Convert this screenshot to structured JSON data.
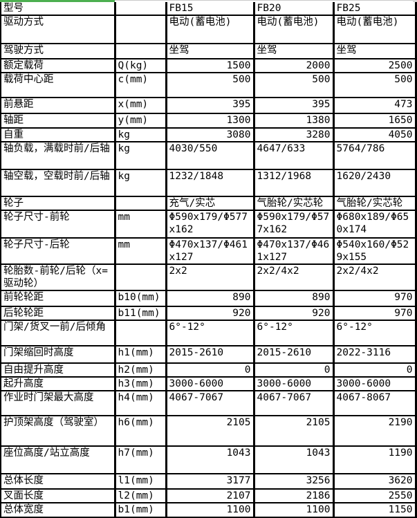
{
  "accent": {
    "selection_green": "#4CAF50",
    "gridline_gray": "#c9c9c9",
    "corner_gray": "#d4d4d4",
    "table_border": "#000000"
  },
  "table": {
    "model_header_label": "型号",
    "models": [
      "FB15",
      "FB20",
      "FB25"
    ],
    "rows": [
      {
        "label": "型号",
        "unit": "",
        "fb15": "FB15",
        "fb20": "FB20",
        "fb25": "FB25"
      },
      {
        "label": "驱动方式",
        "unit": "",
        "fb15": "电动(蓄电池)",
        "fb20": "电动(蓄电池)",
        "fb25": "电动(蓄电池)"
      },
      {
        "label": "驾驶方式",
        "unit": "",
        "fb15": "坐驾",
        "fb20": "坐驾",
        "fb25": "坐驾"
      },
      {
        "label": "额定载荷",
        "unit": "Q(kg)",
        "fb15": "1500",
        "fb20": "2000",
        "fb25": "2500"
      },
      {
        "label": "载荷中心距",
        "unit": "c(mm)",
        "fb15": "500",
        "fb20": "500",
        "fb25": "500"
      },
      {
        "label": "前悬距",
        "unit": "x(mm)",
        "fb15": "395",
        "fb20": "395",
        "fb25": "473"
      },
      {
        "label": "轴距",
        "unit": "y(mm)",
        "fb15": "1300",
        "fb20": "1380",
        "fb25": "1650"
      },
      {
        "label": "自重",
        "unit": "kg",
        "fb15": "3080",
        "fb20": "3280",
        "fb25": "4050"
      },
      {
        "label": "轴负载，满载时前/后轴",
        "unit": "kg",
        "fb15": "4030/550",
        "fb20": "4647/633",
        "fb25": "5764/786"
      },
      {
        "label": "轴空载，空载时前/后轴",
        "unit": "kg",
        "fb15": "1232/1848",
        "fb20": "1312/1968",
        "fb25": "1620/2430"
      },
      {
        "label": "轮子",
        "unit": "",
        "fb15": "充气/实芯",
        "fb20": "气胎轮/实芯轮",
        "fb25": "气胎轮/实芯轮"
      },
      {
        "label": "轮子尺寸-前轮",
        "unit": "mm",
        "fb15": "Φ590x179/Φ577x162",
        "fb20": "Φ590x179/Φ577x162",
        "fb25": "Φ680x189/Φ650x174"
      },
      {
        "label": "轮子尺寸-后轮",
        "unit": "mm",
        "fb15": "Φ470x137/Φ461x127",
        "fb20": "Φ470x137/Φ461x127",
        "fb25": "Φ540x160/Φ529x155"
      },
      {
        "label": "轮胎数-前轮/后轮（x=驱动轮）",
        "unit": "",
        "fb15": "2x2",
        "fb20": "2x2/4x2",
        "fb25": "2x2/4x2"
      },
      {
        "label": "前轮轮距",
        "unit": "b10(mm)",
        "fb15": "890",
        "fb20": "890",
        "fb25": "970"
      },
      {
        "label": "后轮轮距",
        "unit": "b11(mm)",
        "fb15": "920",
        "fb20": "920",
        "fb25": "970"
      },
      {
        "label": "门架/货叉一前/后倾角",
        "unit": "",
        "fb15": "6°-12°",
        "fb20": "6°-12°",
        "fb25": "6°-12°"
      },
      {
        "label": "门架缩回时高度",
        "unit": "h1(mm)",
        "fb15": "2015-2610",
        "fb20": "2015-2610",
        "fb25": "2022-3116"
      },
      {
        "label": "自由提升高度",
        "unit": "h2(mm)",
        "fb15": "0",
        "fb20": "0",
        "fb25": "0"
      },
      {
        "label": "起升高度",
        "unit": "h3(mm)",
        "fb15": "3000-6000",
        "fb20": "3000-6000",
        "fb25": "3000-6000"
      },
      {
        "label": "作业时门架最大高度",
        "unit": "h4(mm)",
        "fb15": "4067-7067",
        "fb20": "4067-7067",
        "fb25": "4067-8067"
      },
      {
        "label": "护顶架高度（驾驶室）",
        "unit": "h6(mm)",
        "fb15": "2105",
        "fb20": "2105",
        "fb25": "2190"
      },
      {
        "label": "座位高度/站立高度",
        "unit": "h7(mm)",
        "fb15": "1043",
        "fb20": "1043",
        "fb25": "1190"
      },
      {
        "label": "总体长度",
        "unit": "l1(mm)",
        "fb15": "3177",
        "fb20": "3256",
        "fb25": "3620"
      },
      {
        "label": "叉面长度",
        "unit": "l2(mm)",
        "fb15": "2107",
        "fb20": "2186",
        "fb25": "2550"
      },
      {
        "label": "总体宽度",
        "unit": "b1(mm)",
        "fb15": "1100",
        "fb20": "1100",
        "fb25": "1150"
      }
    ]
  }
}
